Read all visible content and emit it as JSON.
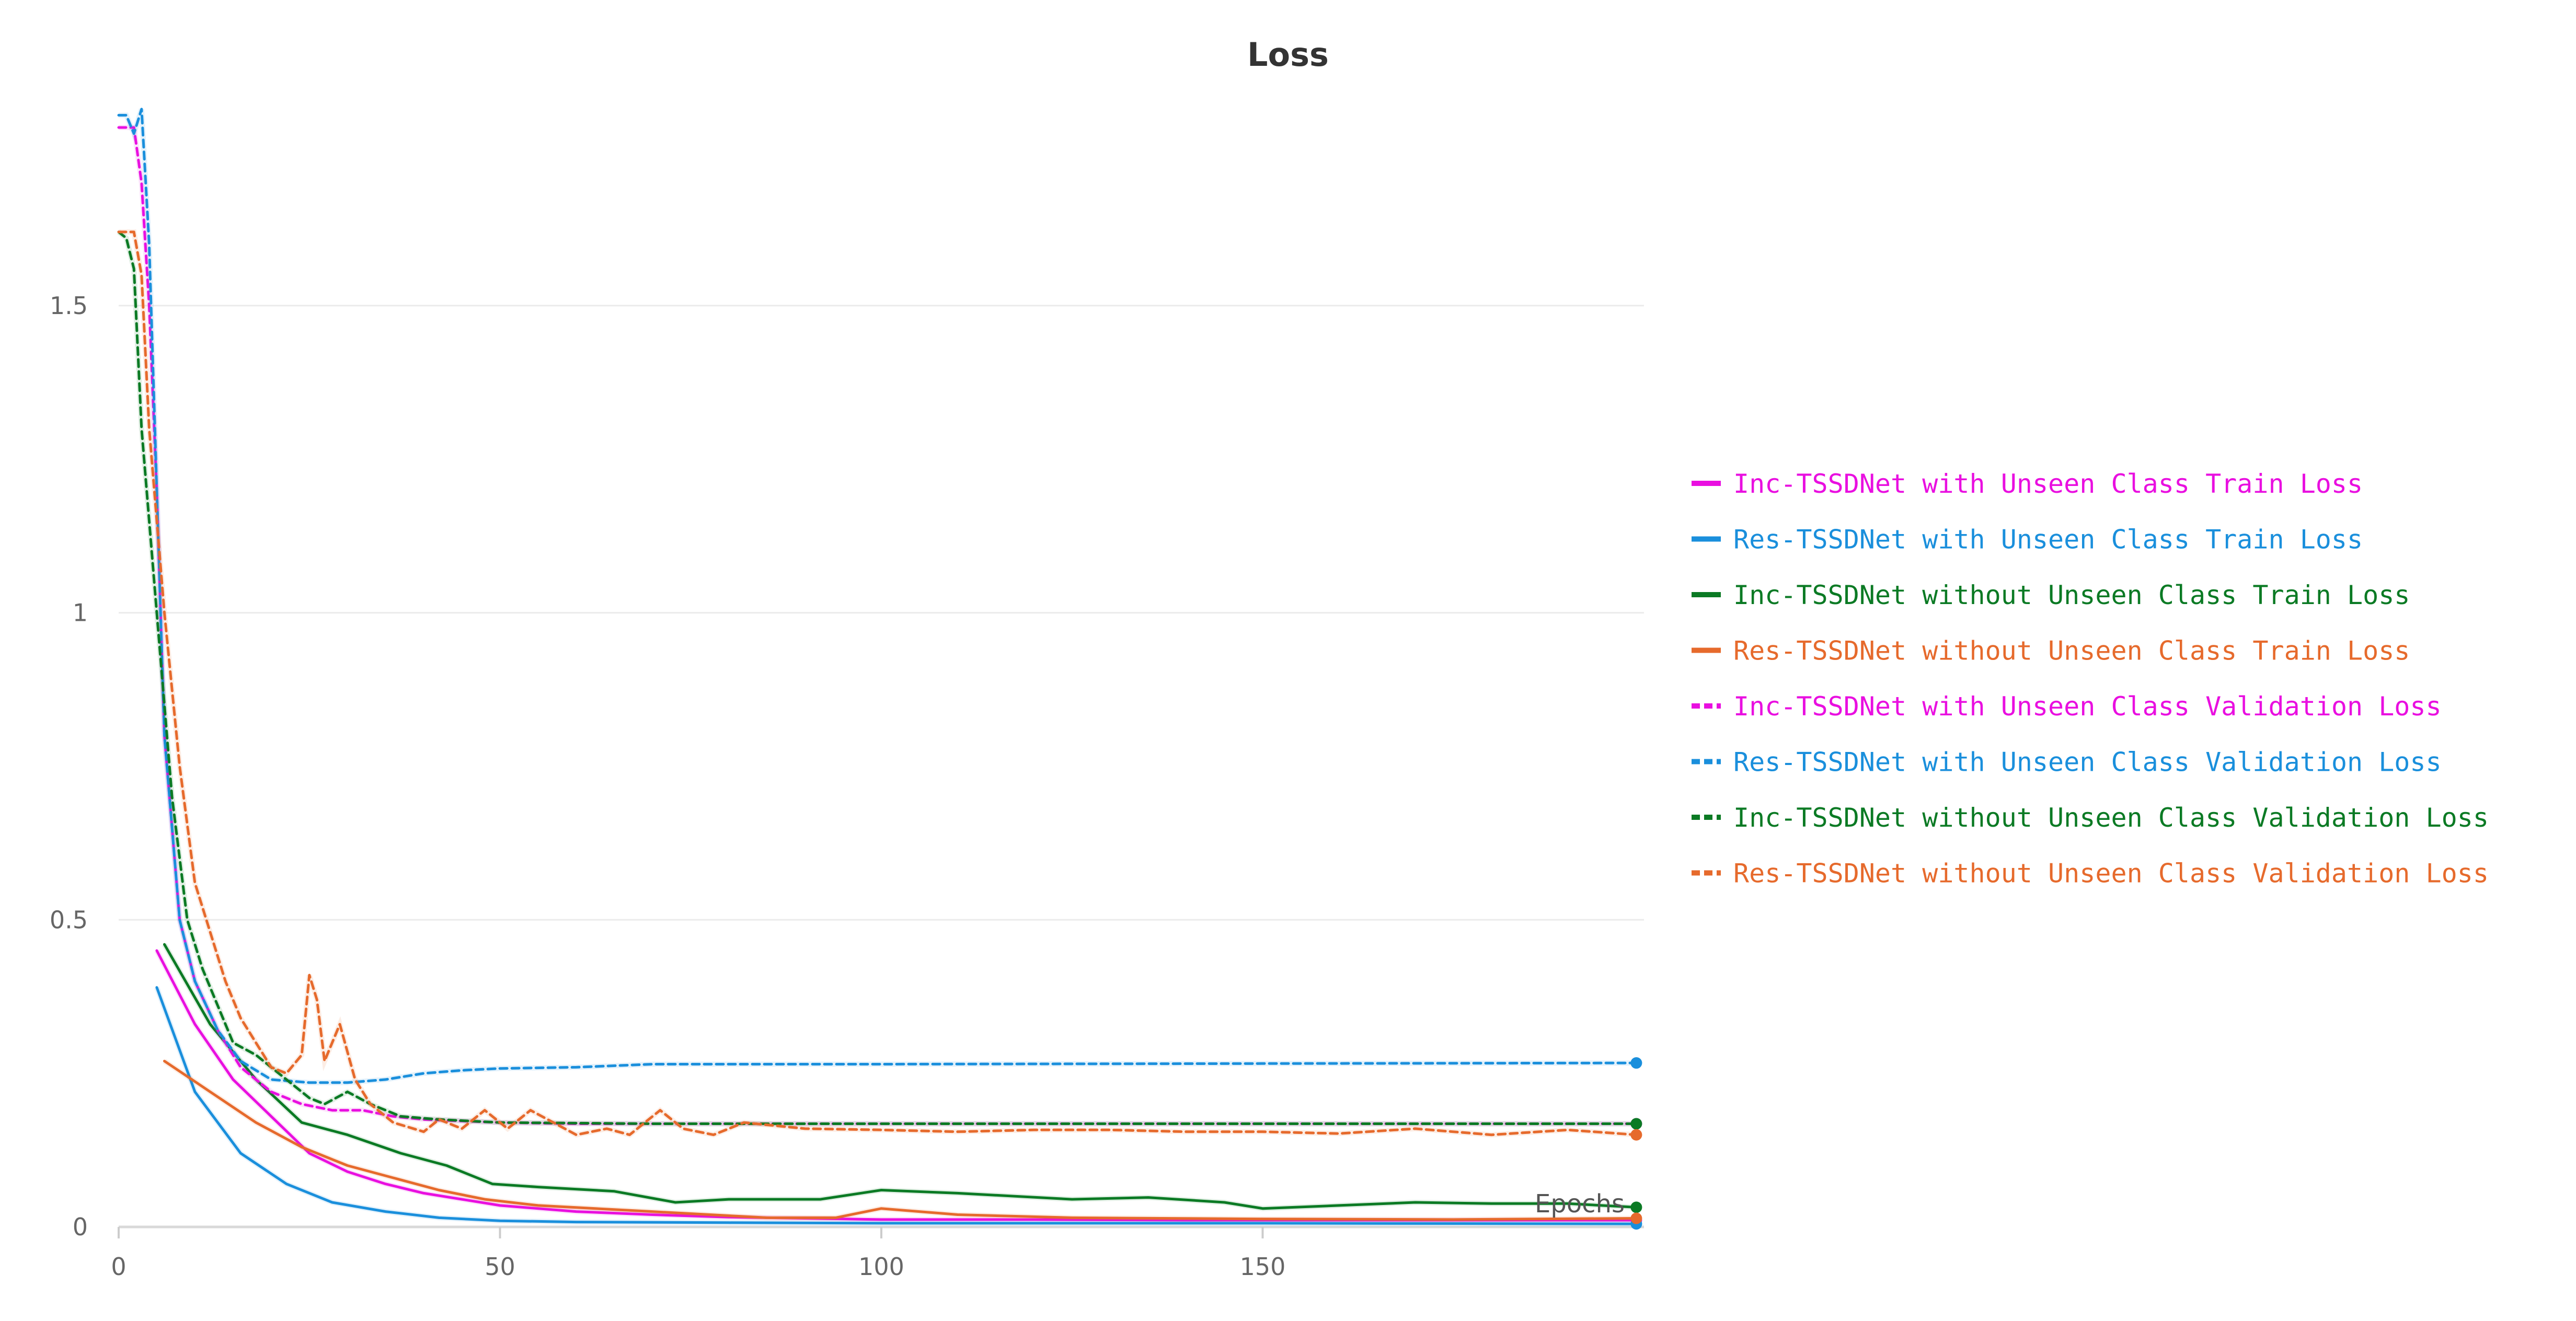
{
  "chart_data": {
    "type": "line",
    "title": "Loss",
    "xlabel": "Epochs",
    "ylabel": "",
    "xlim": [
      0,
      200
    ],
    "ylim": [
      0,
      1.87
    ],
    "xticks": [
      0,
      50,
      100,
      150
    ],
    "yticks": [
      0,
      0.5,
      1,
      1.5
    ],
    "xtick_labels": [
      "0",
      "50",
      "100",
      "150"
    ],
    "ytick_labels": [
      "0",
      "0.5",
      "1",
      "1.5"
    ],
    "grid": true,
    "legend_position": "right",
    "series": [
      {
        "name": "Inc-TSSDNet with Unseen Class Train Loss",
        "color": "#e90fe0",
        "dash": "solid",
        "points": [
          [
            5,
            0.45
          ],
          [
            10,
            0.33
          ],
          [
            15,
            0.24
          ],
          [
            20,
            0.18
          ],
          [
            25,
            0.12
          ],
          [
            30,
            0.09
          ],
          [
            35,
            0.07
          ],
          [
            40,
            0.055
          ],
          [
            45,
            0.045
          ],
          [
            50,
            0.035
          ],
          [
            60,
            0.025
          ],
          [
            70,
            0.02
          ],
          [
            80,
            0.016
          ],
          [
            90,
            0.014
          ],
          [
            100,
            0.012
          ],
          [
            120,
            0.012
          ],
          [
            140,
            0.011
          ],
          [
            160,
            0.011
          ],
          [
            180,
            0.011
          ],
          [
            199,
            0.011
          ]
        ]
      },
      {
        "name": "Res-TSSDNet with Unseen Class Train Loss",
        "color": "#1a8fdc",
        "dash": "solid",
        "points": [
          [
            5,
            0.39
          ],
          [
            10,
            0.22
          ],
          [
            16,
            0.12
          ],
          [
            22,
            0.07
          ],
          [
            28,
            0.04
          ],
          [
            35,
            0.025
          ],
          [
            42,
            0.015
          ],
          [
            50,
            0.01
          ],
          [
            60,
            0.008
          ],
          [
            80,
            0.007
          ],
          [
            100,
            0.006
          ],
          [
            150,
            0.006
          ],
          [
            199,
            0.005
          ]
        ]
      },
      {
        "name": "Inc-TSSDNet without Unseen Class Train Loss",
        "color": "#0b7a24",
        "dash": "solid",
        "points": [
          [
            6,
            0.46
          ],
          [
            12,
            0.33
          ],
          [
            18,
            0.24
          ],
          [
            24,
            0.17
          ],
          [
            30,
            0.15
          ],
          [
            37,
            0.12
          ],
          [
            43,
            0.1
          ],
          [
            49,
            0.07
          ],
          [
            55,
            0.065
          ],
          [
            65,
            0.058
          ],
          [
            73,
            0.04
          ],
          [
            80,
            0.045
          ],
          [
            92,
            0.045
          ],
          [
            100,
            0.06
          ],
          [
            110,
            0.055
          ],
          [
            125,
            0.045
          ],
          [
            135,
            0.048
          ],
          [
            145,
            0.04
          ],
          [
            150,
            0.03
          ],
          [
            160,
            0.035
          ],
          [
            170,
            0.04
          ],
          [
            180,
            0.038
          ],
          [
            190,
            0.038
          ],
          [
            199,
            0.032
          ]
        ]
      },
      {
        "name": "Res-TSSDNet without Unseen Class Train Loss",
        "color": "#e66a2c",
        "dash": "solid",
        "points": [
          [
            6,
            0.27
          ],
          [
            12,
            0.22
          ],
          [
            18,
            0.17
          ],
          [
            24,
            0.13
          ],
          [
            30,
            0.1
          ],
          [
            36,
            0.08
          ],
          [
            42,
            0.06
          ],
          [
            48,
            0.045
          ],
          [
            55,
            0.035
          ],
          [
            70,
            0.025
          ],
          [
            85,
            0.015
          ],
          [
            94,
            0.015
          ],
          [
            100,
            0.03
          ],
          [
            110,
            0.02
          ],
          [
            125,
            0.015
          ],
          [
            150,
            0.013
          ],
          [
            175,
            0.012
          ],
          [
            199,
            0.014
          ]
        ]
      },
      {
        "name": "Inc-TSSDNet with Unseen Class Validation Loss",
        "color": "#e90fe0",
        "dash": "dashed",
        "points": [
          [
            0,
            1.79
          ],
          [
            2,
            1.79
          ],
          [
            3,
            1.7
          ],
          [
            4,
            1.5
          ],
          [
            5,
            1.2
          ],
          [
            6,
            0.8
          ],
          [
            8,
            0.5
          ],
          [
            10,
            0.4
          ],
          [
            13,
            0.32
          ],
          [
            16,
            0.26
          ],
          [
            20,
            0.22
          ],
          [
            24,
            0.2
          ],
          [
            28,
            0.19
          ],
          [
            32,
            0.19
          ],
          [
            36,
            0.18
          ],
          [
            40,
            0.175
          ],
          [
            50,
            0.17
          ],
          [
            60,
            0.168
          ],
          [
            70,
            0.168
          ],
          [
            100,
            0.168
          ],
          [
            140,
            0.168
          ],
          [
            170,
            0.168
          ],
          [
            199,
            0.168
          ]
        ]
      },
      {
        "name": "Res-TSSDNet with Unseen Class Validation Loss",
        "color": "#1a8fdc",
        "dash": "dashed",
        "points": [
          [
            0,
            1.81
          ],
          [
            1,
            1.81
          ],
          [
            2,
            1.78
          ],
          [
            3,
            1.82
          ],
          [
            4,
            1.6
          ],
          [
            5,
            1.2
          ],
          [
            6,
            0.8
          ],
          [
            8,
            0.5
          ],
          [
            10,
            0.4
          ],
          [
            13,
            0.32
          ],
          [
            16,
            0.27
          ],
          [
            20,
            0.24
          ],
          [
            25,
            0.235
          ],
          [
            30,
            0.235
          ],
          [
            35,
            0.24
          ],
          [
            40,
            0.25
          ],
          [
            45,
            0.255
          ],
          [
            50,
            0.258
          ],
          [
            60,
            0.26
          ],
          [
            70,
            0.265
          ],
          [
            100,
            0.265
          ],
          [
            150,
            0.266
          ],
          [
            199,
            0.267
          ]
        ]
      },
      {
        "name": "Inc-TSSDNet without Unseen Class Validation Loss",
        "color": "#0b7a24",
        "dash": "dashed",
        "points": [
          [
            0,
            1.62
          ],
          [
            1,
            1.61
          ],
          [
            2,
            1.56
          ],
          [
            3,
            1.3
          ],
          [
            5,
            1.0
          ],
          [
            7,
            0.7
          ],
          [
            9,
            0.5
          ],
          [
            11,
            0.42
          ],
          [
            13,
            0.36
          ],
          [
            15,
            0.3
          ],
          [
            18,
            0.28
          ],
          [
            20,
            0.26
          ],
          [
            22,
            0.24
          ],
          [
            25,
            0.21
          ],
          [
            27,
            0.2
          ],
          [
            30,
            0.22
          ],
          [
            33,
            0.2
          ],
          [
            37,
            0.18
          ],
          [
            42,
            0.175
          ],
          [
            50,
            0.17
          ],
          [
            70,
            0.168
          ],
          [
            100,
            0.168
          ],
          [
            150,
            0.168
          ],
          [
            199,
            0.168
          ]
        ]
      },
      {
        "name": "Res-TSSDNet without Unseen Class Validation Loss",
        "color": "#e66a2c",
        "dash": "dashed",
        "points": [
          [
            0,
            1.62
          ],
          [
            2,
            1.62
          ],
          [
            3,
            1.55
          ],
          [
            4,
            1.3
          ],
          [
            6,
            1.0
          ],
          [
            8,
            0.75
          ],
          [
            10,
            0.56
          ],
          [
            12,
            0.48
          ],
          [
            14,
            0.4
          ],
          [
            16,
            0.34
          ],
          [
            18,
            0.3
          ],
          [
            20,
            0.26
          ],
          [
            22,
            0.25
          ],
          [
            24,
            0.28
          ],
          [
            25,
            0.41
          ],
          [
            26,
            0.37
          ],
          [
            27,
            0.27
          ],
          [
            29,
            0.33
          ],
          [
            31,
            0.24
          ],
          [
            33,
            0.2
          ],
          [
            36,
            0.17
          ],
          [
            40,
            0.155
          ],
          [
            42,
            0.175
          ],
          [
            45,
            0.16
          ],
          [
            48,
            0.19
          ],
          [
            51,
            0.16
          ],
          [
            54,
            0.19
          ],
          [
            57,
            0.17
          ],
          [
            60,
            0.15
          ],
          [
            64,
            0.16
          ],
          [
            67,
            0.15
          ],
          [
            71,
            0.19
          ],
          [
            74,
            0.16
          ],
          [
            78,
            0.15
          ],
          [
            82,
            0.17
          ],
          [
            86,
            0.165
          ],
          [
            90,
            0.16
          ],
          [
            100,
            0.158
          ],
          [
            110,
            0.155
          ],
          [
            120,
            0.158
          ],
          [
            130,
            0.158
          ],
          [
            140,
            0.155
          ],
          [
            150,
            0.155
          ],
          [
            160,
            0.152
          ],
          [
            170,
            0.16
          ],
          [
            180,
            0.15
          ],
          [
            190,
            0.158
          ],
          [
            199,
            0.15
          ]
        ]
      }
    ]
  }
}
